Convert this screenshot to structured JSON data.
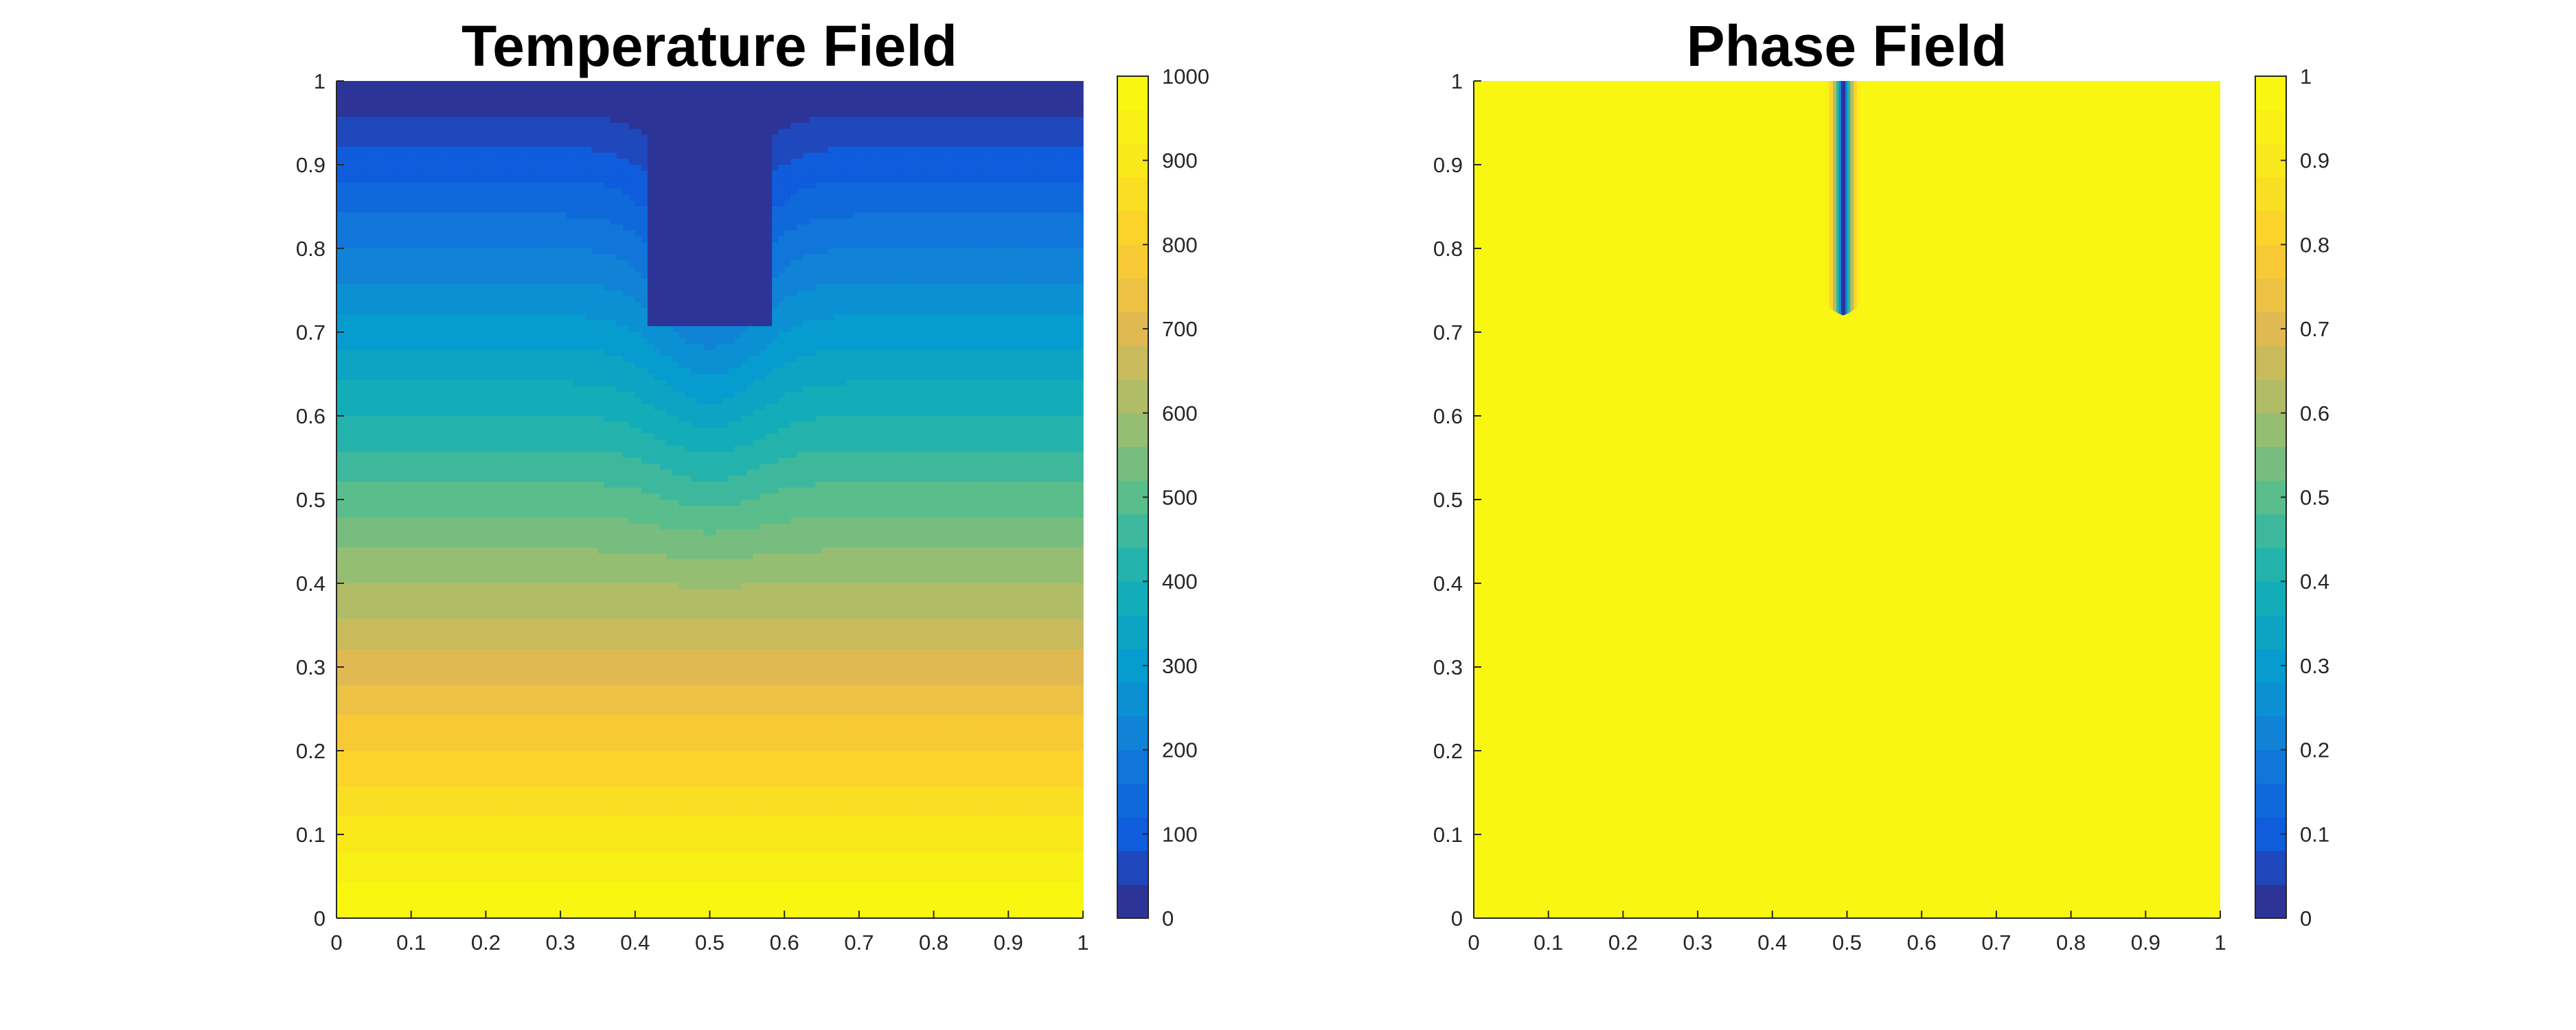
{
  "chart_data": [
    {
      "type": "heatmap",
      "subtype": "filled-contour",
      "title": "Temperature Field",
      "xlabel": "",
      "ylabel": "",
      "xlim": [
        0,
        1
      ],
      "ylim": [
        0,
        1
      ],
      "x_ticks": [
        "0",
        "0.1",
        "0.2",
        "0.3",
        "0.4",
        "0.5",
        "0.6",
        "0.7",
        "0.8",
        "0.9",
        "1"
      ],
      "y_ticks": [
        "0",
        "0.1",
        "0.2",
        "0.3",
        "0.4",
        "0.5",
        "0.6",
        "0.7",
        "0.8",
        "0.9",
        "1"
      ],
      "colorbar": {
        "limits": [
          0,
          1000
        ],
        "ticks": [
          "0",
          "100",
          "200",
          "300",
          "400",
          "500",
          "600",
          "700",
          "800",
          "900",
          "1000"
        ],
        "levels": 25,
        "colormap": "parula"
      },
      "field": {
        "value_at_top": 0,
        "value_at_bottom": 1000,
        "dip_center_x": 0.5,
        "dip_tip_y": 0.71
      },
      "grid": false
    },
    {
      "type": "heatmap",
      "subtype": "filled-contour",
      "title": "Phase Field",
      "xlabel": "",
      "ylabel": "",
      "xlim": [
        0,
        1
      ],
      "ylim": [
        0,
        1
      ],
      "x_ticks": [
        "0",
        "0.1",
        "0.2",
        "0.3",
        "0.4",
        "0.5",
        "0.6",
        "0.7",
        "0.8",
        "0.9",
        "1"
      ],
      "y_ticks": [
        "0",
        "0.1",
        "0.2",
        "0.3",
        "0.4",
        "0.5",
        "0.6",
        "0.7",
        "0.8",
        "0.9",
        "1"
      ],
      "colorbar": {
        "limits": [
          0,
          1
        ],
        "ticks": [
          "0",
          "0.1",
          "0.2",
          "0.3",
          "0.4",
          "0.5",
          "0.6",
          "0.7",
          "0.8",
          "0.9",
          "1"
        ],
        "levels": 25,
        "colormap": "parula"
      },
      "field": {
        "background_value": 1,
        "crack_value": 0,
        "crack_x": 0.495,
        "crack_from_y": 1.0,
        "crack_to_y": 0.72
      },
      "grid": false
    }
  ]
}
